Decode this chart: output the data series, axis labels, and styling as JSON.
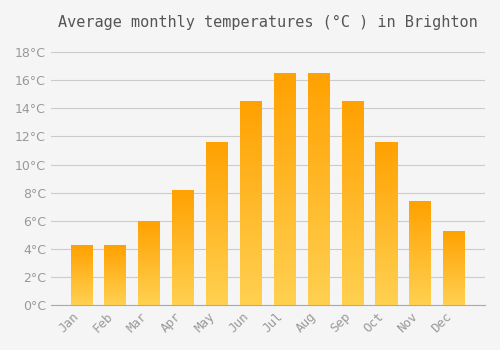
{
  "title": "Average monthly temperatures (°C ) in Brighton",
  "months": [
    "Jan",
    "Feb",
    "Mar",
    "Apr",
    "May",
    "Jun",
    "Jul",
    "Aug",
    "Sep",
    "Oct",
    "Nov",
    "Dec"
  ],
  "temperatures": [
    4.3,
    4.3,
    6.0,
    8.2,
    11.6,
    14.5,
    16.5,
    16.5,
    14.5,
    11.6,
    7.4,
    5.3
  ],
  "bar_color_top": "#FFC020",
  "bar_color_bottom": "#FFB300",
  "background_color": "#F5F5F5",
  "grid_color": "#CCCCCC",
  "text_color": "#999999",
  "ylim": [
    0,
    19
  ],
  "yticks": [
    0,
    2,
    4,
    6,
    8,
    10,
    12,
    14,
    16,
    18
  ],
  "title_fontsize": 11,
  "tick_fontsize": 9
}
